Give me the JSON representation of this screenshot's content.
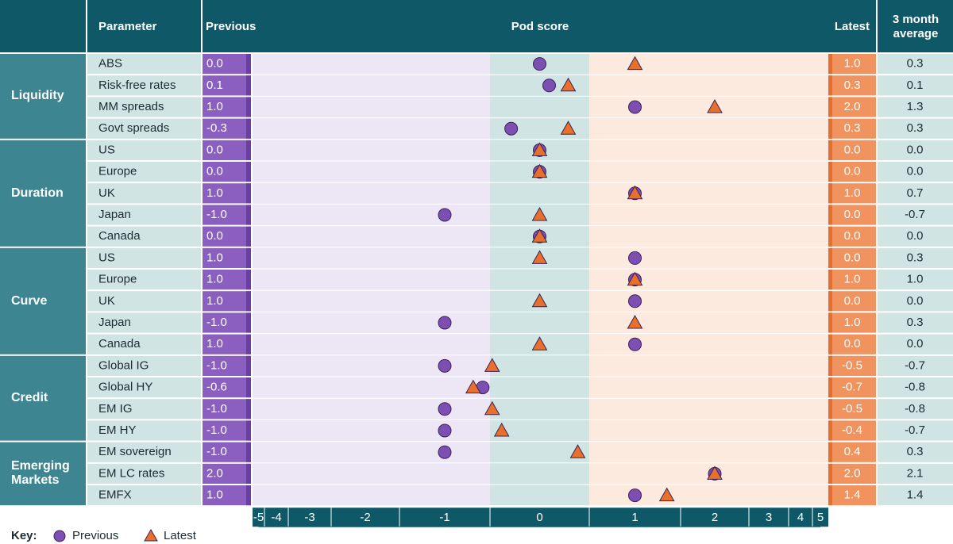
{
  "chart_data": {
    "type": "dot",
    "headers": {
      "parameter": "Parameter",
      "pod_score": "Pod score"
    },
    "groups": [
      {
        "name": "Liquidity",
        "categories": [
          "ABS",
          "Risk-free rates",
          "MM spreads",
          "Govt spreads"
        ]
      },
      {
        "name": "Duration",
        "categories": [
          "US",
          "Europe",
          "UK",
          "Japan",
          "Canada"
        ]
      },
      {
        "name": "Curve",
        "categories": [
          "US",
          "Europe",
          "UK",
          "Japan",
          "Canada"
        ]
      },
      {
        "name": "Credit",
        "categories": [
          "Global IG",
          "Global HY",
          "EM IG",
          "EM HY"
        ]
      },
      {
        "name": "Emerging Markets",
        "categories": [
          "EM sovereign",
          "EM LC rates",
          "EMFX"
        ]
      }
    ],
    "series": [
      {
        "name": "Previous",
        "color": "#7e4fb3",
        "marker": "circle",
        "values": [
          0,
          0.1,
          1,
          -0.3,
          0,
          0,
          1,
          -1,
          0,
          1,
          1,
          1,
          -1,
          1,
          -1,
          -0.6,
          -1,
          -1,
          -1,
          2,
          1
        ],
        "value_labels": [
          "0.0",
          "0.1",
          "1.0",
          "-0.3",
          "0.0",
          "0.0",
          "1.0",
          "-1.0",
          "0.0",
          "1.0",
          "1.0",
          "1.0",
          "-1.0",
          "1.0",
          "-1.0",
          "-0.6",
          "-1.0",
          "-1.0",
          "-1.0",
          "2.0",
          "1.0"
        ]
      },
      {
        "name": "Latest",
        "color": "#e8702a",
        "marker": "triangle",
        "values": [
          1,
          0.3,
          2,
          0.3,
          0,
          0,
          1,
          0,
          0,
          0,
          1,
          0,
          1,
          0,
          -0.5,
          -0.7,
          -0.5,
          -0.4,
          0.4,
          2,
          1.4
        ],
        "value_labels": [
          "1.0",
          "0.3",
          "2.0",
          "0.3",
          "0.0",
          "0.0",
          "1.0",
          "0.0",
          "0.0",
          "0.0",
          "1.0",
          "0.0",
          "1.0",
          "0.0",
          "-0.5",
          "-0.7",
          "-0.5",
          "-0.4",
          "0.4",
          "2.0",
          "1.4"
        ]
      }
    ],
    "average": {
      "name": "3 month average",
      "values": [
        0.3,
        0.1,
        1.3,
        0.3,
        0,
        0,
        0.7,
        -0.7,
        0,
        0.3,
        1,
        0,
        0.3,
        0,
        -0.7,
        -0.8,
        -0.8,
        -0.7,
        0.3,
        2.1,
        1.4
      ],
      "value_labels": [
        "0.3",
        "0.1",
        "1.3",
        "0.3",
        "0.0",
        "0.0",
        "0.7",
        "-0.7",
        "0.0",
        "0.3",
        "1.0",
        "0.0",
        "0.3",
        "0.0",
        "-0.7",
        "-0.8",
        "-0.8",
        "-0.7",
        "0.3",
        "2.1",
        "1.4"
      ]
    },
    "xlim": [
      -5,
      5
    ],
    "xticks": [
      -5,
      -4,
      -3,
      -2,
      -1,
      0,
      1,
      2,
      3,
      4,
      5
    ],
    "legend_title": "Key:"
  }
}
